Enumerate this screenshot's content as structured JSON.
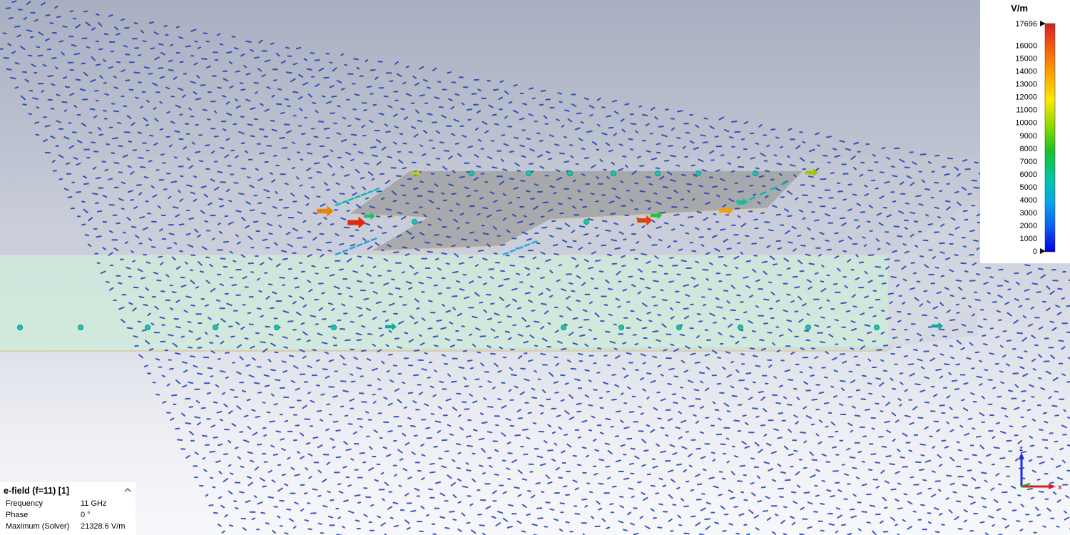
{
  "legend": {
    "unit": "V/m",
    "ticks": [
      "17696",
      "16000",
      "15000",
      "14000",
      "13000",
      "12000",
      "11000",
      "10000",
      "9000",
      "8000",
      "7000",
      "6000",
      "5000",
      "4000",
      "3000",
      "2000",
      "1000",
      "0"
    ],
    "max_value": 17696,
    "colors": [
      "#d61f1f",
      "#f25a12",
      "#ffa200",
      "#ffe800",
      "#8fd900",
      "#19c028",
      "#00c6a8",
      "#06a8e6",
      "#0a5ff0",
      "#0000e0"
    ]
  },
  "info_panel": {
    "title": "e-field (f=11) [1]",
    "rows": [
      {
        "label": "Frequency",
        "value": "11 GHz"
      },
      {
        "label": "Phase",
        "value": "0 °"
      },
      {
        "label": "Maximum (Solver)",
        "value": "21328.6 V/m"
      }
    ]
  },
  "axes": {
    "z_label": "z",
    "x_label": "x",
    "z_color": "#2030d0",
    "x_color": "#d02020",
    "y_color": "#20a020"
  },
  "scene": {
    "background_top": "#a9afc2",
    "background_bottom": "#f7f8fb",
    "arrow_color": "#1440b8",
    "substrate_color": "#cfeedd",
    "patch_color": "#a8a8a8"
  }
}
